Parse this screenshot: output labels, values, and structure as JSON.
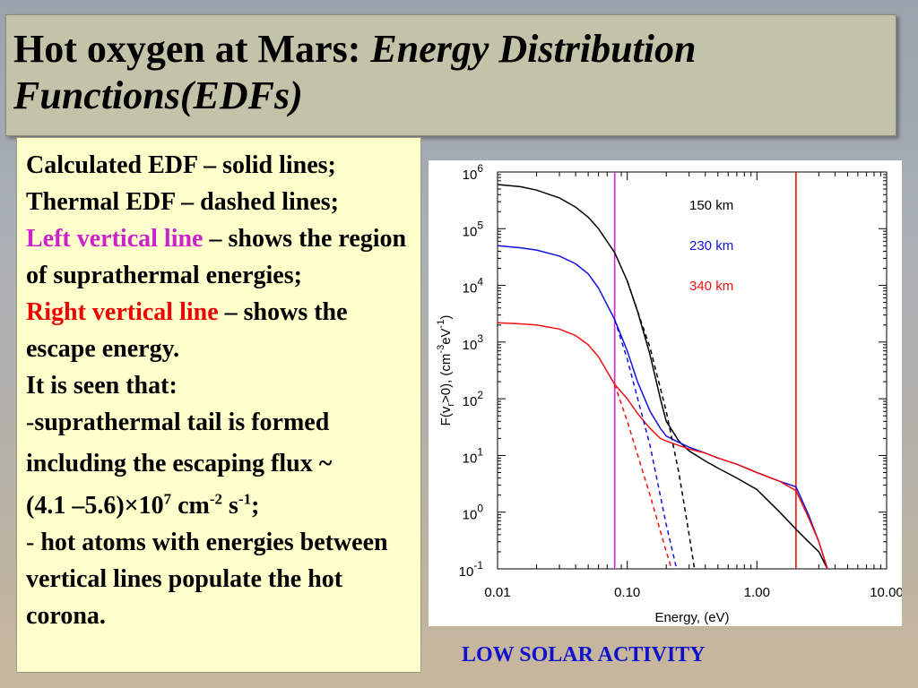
{
  "title": {
    "prefix": "Hot oxygen at Mars: ",
    "italic": "Energy Distribution Functions(EDFs)"
  },
  "text": {
    "line1": "Calculated EDF – solid lines;",
    "line2": "Thermal EDF – dashed lines;",
    "left_label": "Left vertical line",
    "left_rest": " – shows the region of suprathermal energies;",
    "right_label": "Right vertical line",
    "right_rest": " – shows the escape energy.",
    "seen": "It is seen that:",
    "bullet1_dash": "-",
    "bullet1_a": "suprathermal tail is formed",
    "bullet1_b": "including the escaping flux ~",
    "flux_open": "(4.1 –5.6)×10",
    "flux_exp": "7",
    "flux_unit1": " cm",
    "flux_unit1_exp": "-2",
    "flux_unit2": " s",
    "flux_unit2_exp": "-1",
    "flux_close": ";",
    "bullet2_dash": "- ",
    "bullet2": "hot atoms with energies between vertical lines populate the hot corona."
  },
  "caption": "LOW SOLAR ACTIVITY",
  "chart_data": {
    "type": "line",
    "xscale": "log",
    "yscale": "log",
    "xlim": [
      0.01,
      10
    ],
    "ylim": [
      0.1,
      1000000
    ],
    "xlabel": "Energy, (eV)",
    "ylabel": "F(v_r>0), (cm^-3 eV^-1)",
    "xticks": [
      "0.01",
      "0.10",
      "1.00",
      "10.00"
    ],
    "yticks": [
      "10^6",
      "10^5",
      "10^4",
      "10^3",
      "10^2",
      "10^1",
      "10^0",
      "10^-1"
    ],
    "vlines": [
      {
        "x": 0.08,
        "color": "#dd22dd",
        "meaning": "suprathermal region boundary"
      },
      {
        "x": 2.0,
        "color": "#ee1111",
        "meaning": "escape energy"
      }
    ],
    "series": [
      {
        "name": "150 km",
        "color": "#000000",
        "style": "solid",
        "x": [
          0.01,
          0.015,
          0.02,
          0.03,
          0.04,
          0.05,
          0.06,
          0.08,
          0.1,
          0.12,
          0.15,
          0.18,
          0.2,
          0.25,
          0.3,
          0.4,
          0.5,
          0.7,
          1.0,
          1.5,
          2.0,
          2.5,
          3.0,
          3.5
        ],
        "y": [
          600000,
          550000,
          480000,
          350000,
          240000,
          160000,
          100000,
          38000,
          12000,
          3500,
          600,
          100,
          40,
          18,
          12,
          8,
          6,
          4,
          2.5,
          1.0,
          0.5,
          0.3,
          0.2,
          0.1
        ]
      },
      {
        "name": "230 km",
        "color": "#1111dd",
        "style": "solid",
        "x": [
          0.01,
          0.015,
          0.02,
          0.03,
          0.04,
          0.05,
          0.06,
          0.08,
          0.1,
          0.12,
          0.15,
          0.18,
          0.2,
          0.25,
          0.3,
          0.4,
          0.5,
          0.7,
          1.0,
          1.5,
          2.0,
          2.5,
          3.0,
          3.5
        ],
        "y": [
          50000,
          46000,
          42000,
          33000,
          24000,
          16000,
          9000,
          2500,
          700,
          200,
          60,
          30,
          22,
          17,
          14,
          11,
          9,
          7,
          5,
          3.5,
          2.8,
          0.9,
          0.3,
          0.1
        ]
      },
      {
        "name": "340 km",
        "color": "#ee1111",
        "style": "solid",
        "x": [
          0.01,
          0.015,
          0.02,
          0.03,
          0.04,
          0.05,
          0.06,
          0.08,
          0.1,
          0.12,
          0.15,
          0.18,
          0.2,
          0.25,
          0.3,
          0.4,
          0.5,
          0.7,
          1.0,
          1.5,
          2.0,
          2.5,
          3.0,
          3.5
        ],
        "y": [
          2200,
          2100,
          2000,
          1700,
          1300,
          900,
          550,
          180,
          100,
          55,
          30,
          20,
          18,
          15,
          13,
          11,
          9,
          7,
          5,
          3.5,
          2.4,
          0.8,
          0.3,
          0.1
        ]
      },
      {
        "color": "#000000",
        "style": "dashed",
        "x": [
          0.1,
          0.15,
          0.2,
          0.25,
          0.3,
          0.33
        ],
        "y": [
          12000,
          800,
          60,
          5,
          0.4,
          0.1
        ]
      },
      {
        "color": "#1111dd",
        "style": "dashed",
        "x": [
          0.08,
          0.1,
          0.15,
          0.2,
          0.24
        ],
        "y": [
          2500,
          500,
          15,
          0.6,
          0.1
        ]
      },
      {
        "color": "#ee1111",
        "style": "dashed",
        "x": [
          0.08,
          0.1,
          0.15,
          0.2,
          0.22
        ],
        "y": [
          180,
          40,
          2,
          0.2,
          0.1
        ]
      }
    ],
    "legend": [
      {
        "label": "150 km",
        "color": "#000000"
      },
      {
        "label": "230 km",
        "color": "#1111dd"
      },
      {
        "label": "340 km",
        "color": "#ee1111"
      }
    ],
    "legend_placement": "top-right",
    "grid": false
  }
}
